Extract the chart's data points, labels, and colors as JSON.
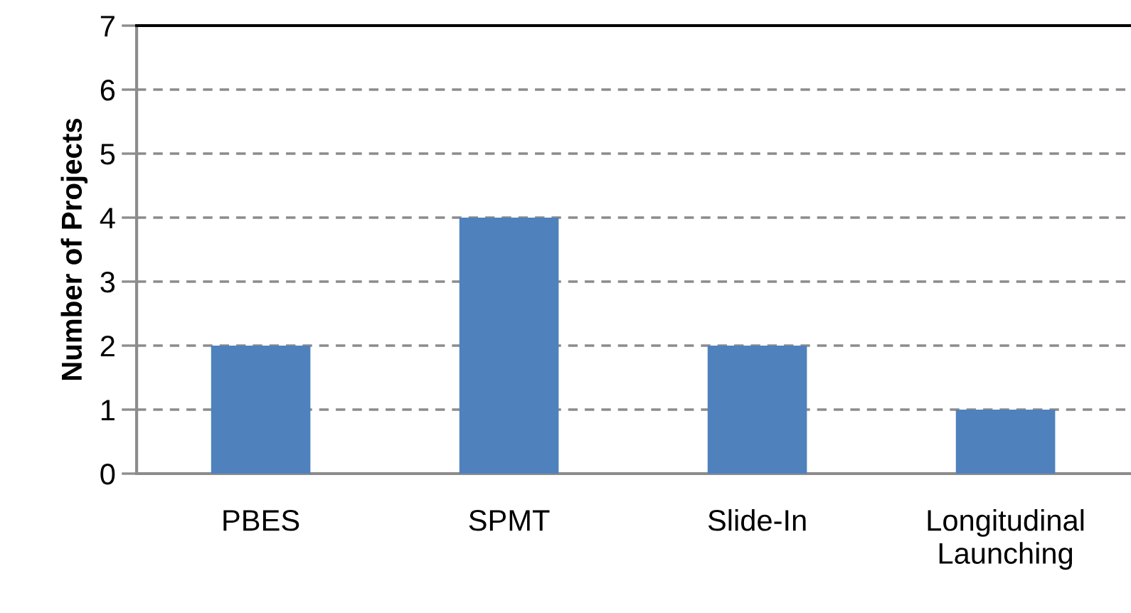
{
  "chart_data": {
    "type": "bar",
    "ylabel": "Number of Projects",
    "categories": [
      "PBES",
      "SPMT",
      "Slide-In",
      "Longitudinal\nLaunching"
    ],
    "values": [
      2,
      4,
      2,
      1
    ],
    "color": "#4f81bd",
    "ylim": [
      0,
      7
    ],
    "yticks": [
      0,
      1,
      2,
      3,
      4,
      5,
      6,
      7
    ],
    "grid": "y"
  }
}
